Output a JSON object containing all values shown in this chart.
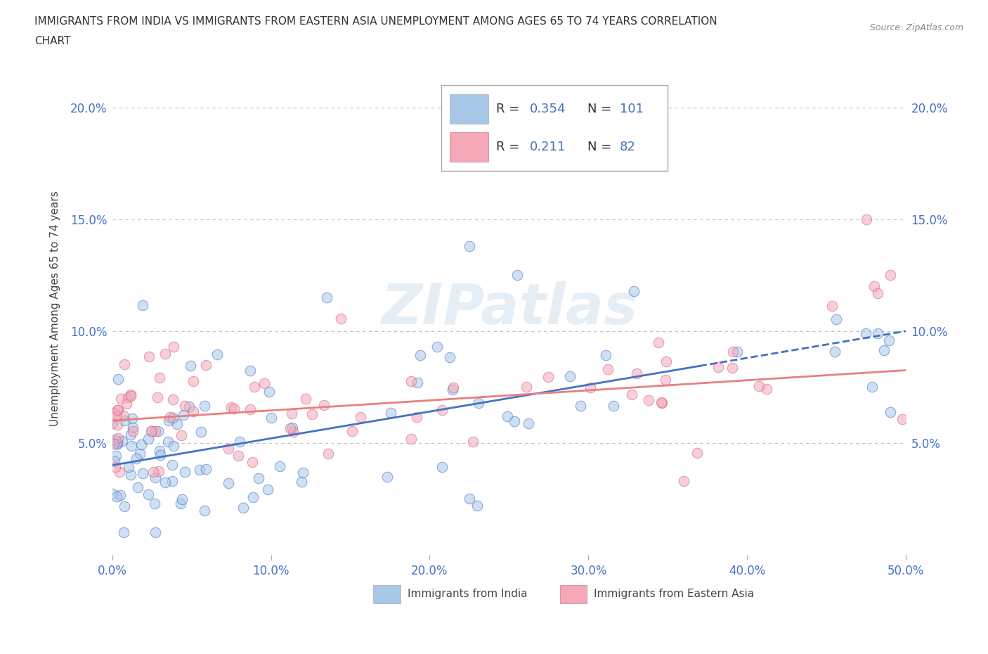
{
  "title": "IMMIGRANTS FROM INDIA VS IMMIGRANTS FROM EASTERN ASIA UNEMPLOYMENT AMONG AGES 65 TO 74 YEARS CORRELATION\nCHART",
  "source": "Source: ZipAtlas.com",
  "ylabel": "Unemployment Among Ages 65 to 74 years",
  "xlim": [
    0.0,
    0.5
  ],
  "ylim": [
    0.0,
    0.22
  ],
  "xticks": [
    0.0,
    0.1,
    0.2,
    0.3,
    0.4,
    0.5
  ],
  "xticklabels": [
    "0.0%",
    "10.0%",
    "20.0%",
    "30.0%",
    "40.0%",
    "50.0%"
  ],
  "yticks": [
    0.0,
    0.05,
    0.1,
    0.15,
    0.2
  ],
  "yticklabels_left": [
    "",
    "5.0%",
    "10.0%",
    "15.0%",
    "20.0%"
  ],
  "yticklabels_right": [
    "",
    "5.0%",
    "10.0%",
    "15.0%",
    "20.0%"
  ],
  "india_color": "#a8c8e8",
  "eastern_asia_color": "#f4a8b8",
  "india_line_color": "#4472c4",
  "eastern_asia_line_color": "#e88080",
  "india_R": "0.354",
  "india_N": "101",
  "eastern_asia_R": "0.211",
  "eastern_asia_N": "82",
  "india_intercept": 0.04,
  "india_slope": 0.12,
  "eastern_asia_intercept": 0.06,
  "eastern_asia_slope": 0.045,
  "watermark": "ZIPatlas",
  "legend_label_india": "Immigrants from India",
  "legend_label_eastern_asia": "Immigrants from Eastern Asia",
  "background_color": "#ffffff",
  "grid_color": "#c0c0c0",
  "title_color": "#333333",
  "tick_color": "#4472c4",
  "R_color": "#4472c4"
}
